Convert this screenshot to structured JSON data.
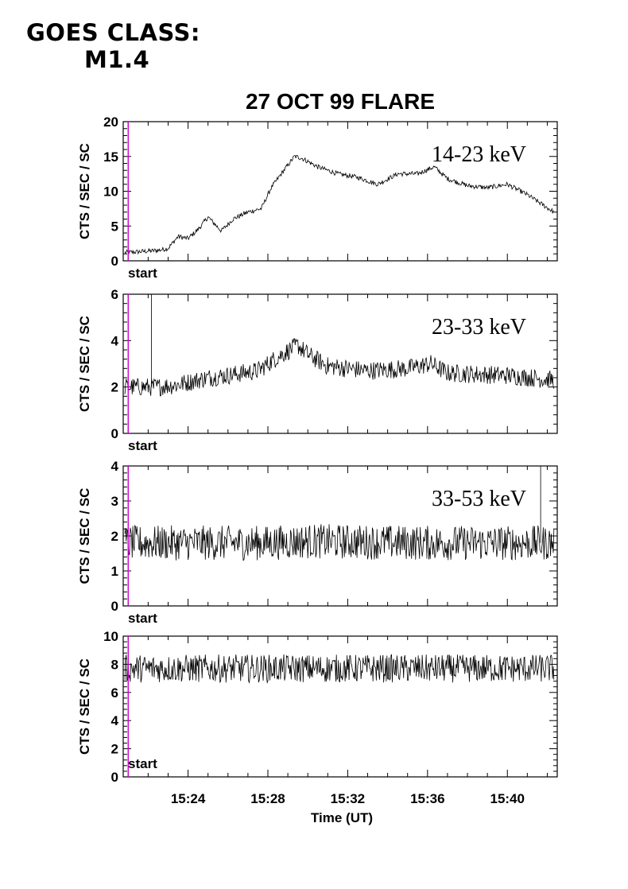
{
  "header": {
    "goes_line1": "GOES CLASS:",
    "goes_line2": "M1.4",
    "title": "27 OCT 99 FLARE"
  },
  "colors": {
    "marker": "#cc00cc",
    "trace": "#000000",
    "axes": "#000000"
  },
  "chart_data": [
    {
      "type": "line",
      "title": "27 OCT 99 FLARE",
      "label": "14-23 keV",
      "ylabel": "CTS / SEC / SC",
      "xlabel": "",
      "ylim": [
        0,
        20
      ],
      "yticks": [
        0,
        5,
        10,
        15,
        20
      ],
      "xlim": [
        "15:20:45",
        "15:42:30"
      ],
      "marker": {
        "label": "start",
        "time": "15:21:00"
      },
      "noise": 0.35,
      "profile": [
        [
          "15:20:45",
          1.2
        ],
        [
          "15:21:00",
          1.2
        ],
        [
          "15:22:30",
          1.5
        ],
        [
          "15:23:00",
          1.8
        ],
        [
          "15:23:30",
          3.5
        ],
        [
          "15:24:00",
          3.2
        ],
        [
          "15:24:30",
          4.5
        ],
        [
          "15:25:00",
          6.3
        ],
        [
          "15:25:40",
          4.3
        ],
        [
          "15:26:15",
          6.0
        ],
        [
          "15:27:00",
          7.0
        ],
        [
          "15:27:40",
          7.5
        ],
        [
          "15:28:10",
          10.5
        ],
        [
          "15:28:40",
          12.5
        ],
        [
          "15:29:20",
          15.0
        ],
        [
          "15:29:40",
          14.8
        ],
        [
          "15:30:30",
          13.5
        ],
        [
          "15:31:30",
          12.5
        ],
        [
          "15:32:30",
          12.0
        ],
        [
          "15:33:30",
          11.0
        ],
        [
          "15:34:30",
          12.5
        ],
        [
          "15:35:30",
          12.5
        ],
        [
          "15:36:20",
          13.5
        ],
        [
          "15:37:00",
          11.8
        ],
        [
          "15:38:00",
          10.8
        ],
        [
          "15:39:00",
          10.5
        ],
        [
          "15:40:00",
          11.0
        ],
        [
          "15:41:00",
          9.5
        ],
        [
          "15:42:20",
          7.0
        ]
      ],
      "spikes": []
    },
    {
      "type": "line",
      "label": "23-33 keV",
      "ylabel": "CTS / SEC / SC",
      "xlabel": "",
      "ylim": [
        0,
        6
      ],
      "yticks": [
        0,
        2,
        4,
        6
      ],
      "xlim": [
        "15:20:45",
        "15:42:30"
      ],
      "marker": {
        "label": "start",
        "time": "15:21:00"
      },
      "noise": 0.4,
      "profile": [
        [
          "15:20:45",
          2.0
        ],
        [
          "15:22:30",
          2.0
        ],
        [
          "15:23:30",
          2.1
        ],
        [
          "15:25:00",
          2.4
        ],
        [
          "15:26:00",
          2.5
        ],
        [
          "15:27:30",
          2.7
        ],
        [
          "15:28:30",
          3.3
        ],
        [
          "15:29:30",
          3.8
        ],
        [
          "15:30:00",
          3.4
        ],
        [
          "15:31:00",
          2.9
        ],
        [
          "15:33:00",
          2.7
        ],
        [
          "15:35:00",
          2.8
        ],
        [
          "15:36:10",
          3.0
        ],
        [
          "15:37:00",
          2.6
        ],
        [
          "15:40:00",
          2.5
        ],
        [
          "15:42:20",
          2.3
        ]
      ],
      "spikes": [
        [
          "15:22:10",
          6.0
        ]
      ]
    },
    {
      "type": "line",
      "label": "33-53 keV",
      "ylabel": "CTS / SEC / SC",
      "xlabel": "",
      "ylim": [
        0,
        4
      ],
      "yticks": [
        0,
        1,
        2,
        3,
        4
      ],
      "xlim": [
        "15:20:45",
        "15:42:30"
      ],
      "marker": {
        "label": "start",
        "time": "15:21:00"
      },
      "noise": 0.5,
      "profile": [
        [
          "15:20:45",
          1.8
        ],
        [
          "15:28:00",
          1.8
        ],
        [
          "15:30:00",
          1.85
        ],
        [
          "15:36:00",
          1.8
        ],
        [
          "15:42:20",
          1.8
        ]
      ],
      "spikes": [
        [
          "15:41:40",
          4.0
        ]
      ]
    },
    {
      "type": "line",
      "label": "",
      "ylabel": "CTS / SEC / SC",
      "xlabel": "Time (UT)",
      "ylim": [
        0,
        10
      ],
      "yticks": [
        0,
        2,
        4,
        6,
        8,
        10
      ],
      "xlim": [
        "15:20:45",
        "15:42:30"
      ],
      "xticks": [
        "15:24",
        "15:28",
        "15:32",
        "15:36",
        "15:40"
      ],
      "marker": {
        "label": "start",
        "time": "15:21:00"
      },
      "noise": 1.0,
      "profile": [
        [
          "15:20:45",
          7.7
        ],
        [
          "15:42:20",
          7.7
        ]
      ],
      "spikes": []
    }
  ]
}
